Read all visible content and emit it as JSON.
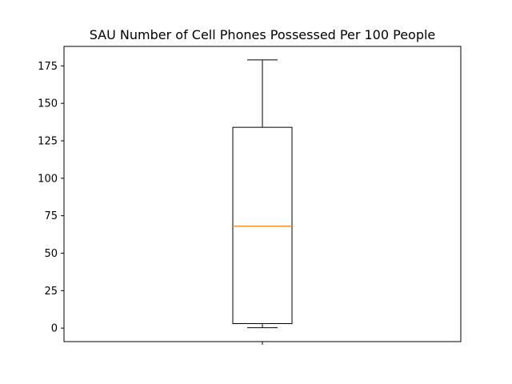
{
  "chart_data": {
    "type": "box",
    "title": "SAU Number of Cell Phones Possessed Per 100 People",
    "xlabel": "",
    "ylabel": "",
    "ylim": [
      -9,
      188
    ],
    "yticks": [
      0,
      25,
      50,
      75,
      100,
      125,
      150,
      175
    ],
    "categories": [
      ""
    ],
    "boxes": [
      {
        "whisker_low": 0.3,
        "q1": 3,
        "median": 68,
        "q3": 134,
        "whisker_high": 179
      }
    ],
    "grid": false,
    "legend": "none",
    "colors": {
      "box": "#000000",
      "median": "#ff7f0e",
      "axes": "#000000"
    }
  }
}
